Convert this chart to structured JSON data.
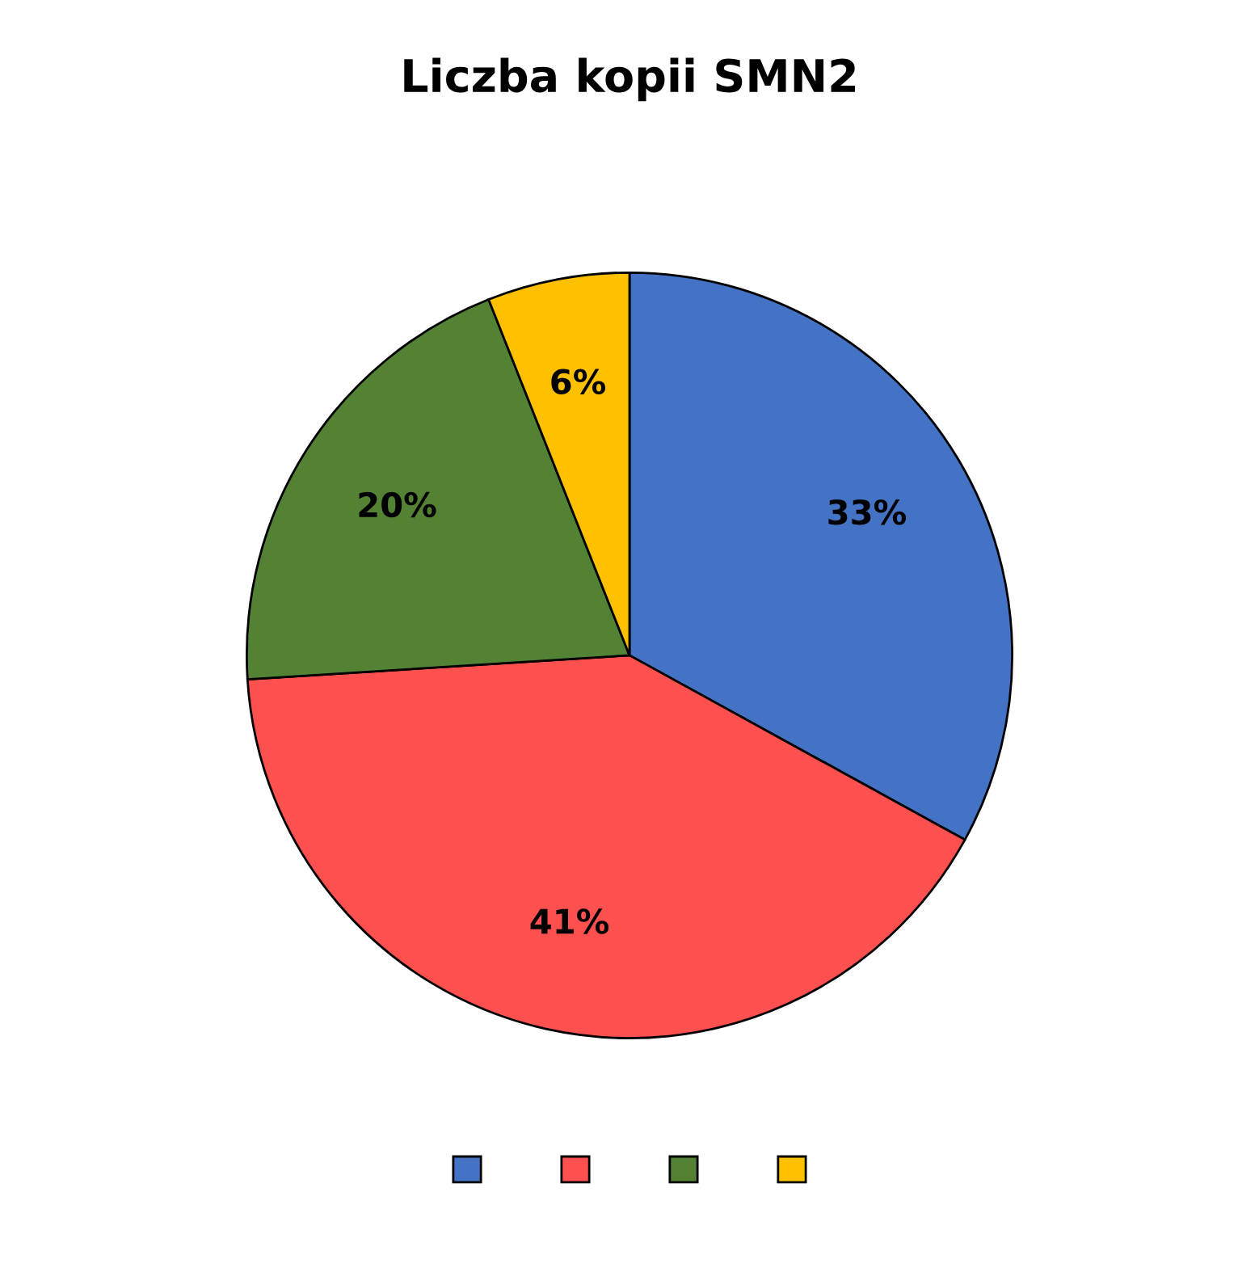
{
  "chart_data": {
    "type": "pie",
    "title": "Liczba kopii SMN2",
    "categories": [
      null,
      null,
      null,
      null
    ],
    "values": [
      33,
      41,
      20,
      6
    ],
    "value_labels": [
      "33%",
      "41%",
      "20%",
      "6%"
    ],
    "colors": [
      "#4472c4",
      "#ff5050",
      "#548235",
      "#ffc000"
    ]
  }
}
